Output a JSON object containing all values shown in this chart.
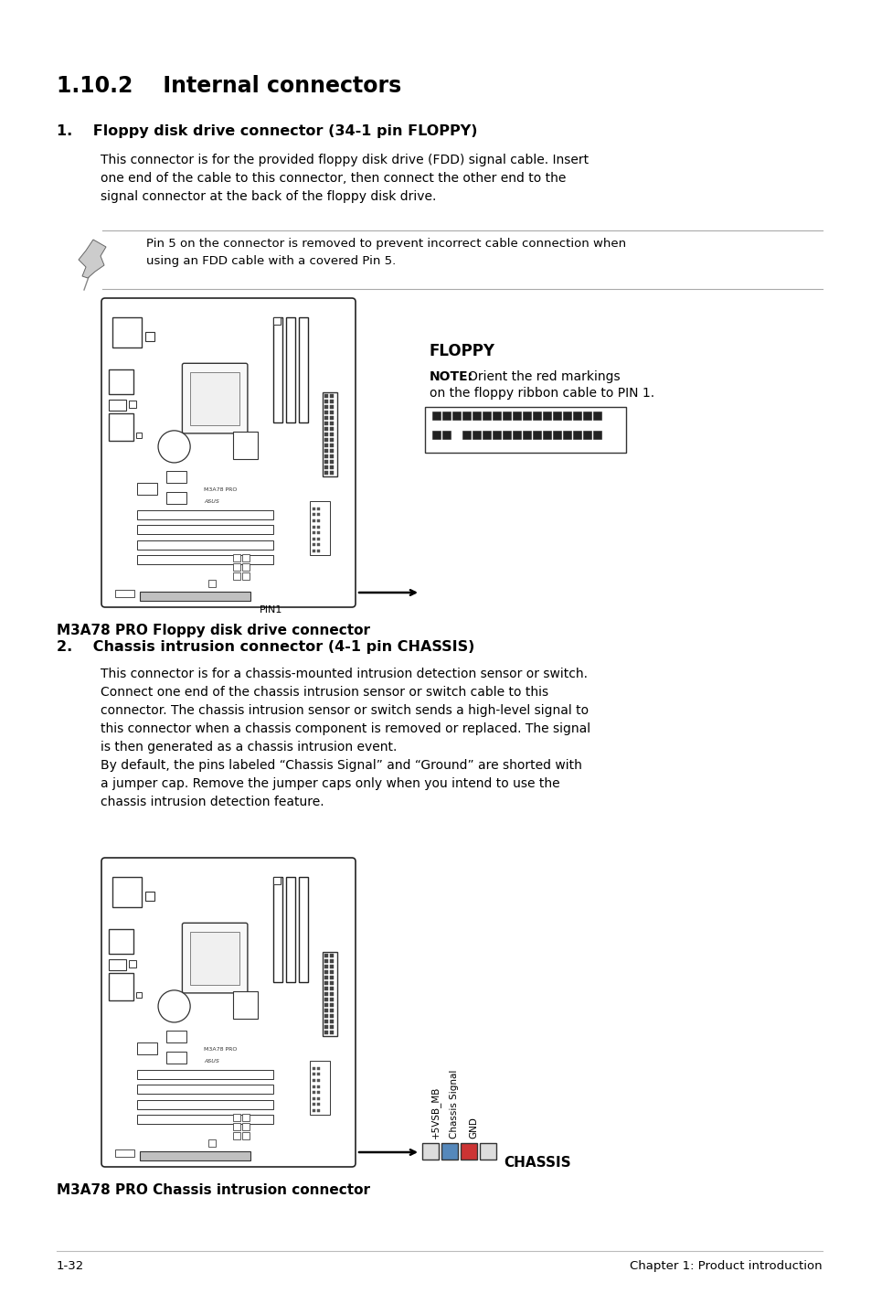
{
  "title": "1.10.2    Internal connectors",
  "section1_heading": "1.    Floppy disk drive connector (34-1 pin FLOPPY)",
  "section1_body": "This connector is for the provided floppy disk drive (FDD) signal cable. Insert\none end of the cable to this connector, then connect the other end to the\nsignal connector at the back of the floppy disk drive.",
  "note1_text": "Pin 5 on the connector is removed to prevent incorrect cable connection when\nusing an FDD cable with a covered Pin 5.",
  "floppy_label": "FLOPPY",
  "floppy_note_bold": "NOTE:",
  "floppy_note_rest1": "Orient the red markings",
  "floppy_note_rest2": "on the floppy ribbon cable to PIN 1.",
  "floppy_caption": "M3A78 PRO Floppy disk drive connector",
  "floppy_pin1": "PIN1",
  "section2_heading": "2.    Chassis intrusion connector (4-1 pin CHASSIS)",
  "section2_body1": "This connector is for a chassis-mounted intrusion detection sensor or switch.\nConnect one end of the chassis intrusion sensor or switch cable to this\nconnector. The chassis intrusion sensor or switch sends a high-level signal to\nthis connector when a chassis component is removed or replaced. The signal\nis then generated as a chassis intrusion event.",
  "section2_body2": "By default, the pins labeled “Chassis Signal” and “Ground” are shorted with\na jumper cap. Remove the jumper caps only when you intend to use the\nchassis intrusion detection feature.",
  "chassis_label": "CHASSIS",
  "chassis_pins": [
    "+5VSB_MB",
    "Chassis Signal",
    "GND"
  ],
  "chassis_caption": "M3A78 PRO Chassis intrusion connector",
  "footer_left": "1-32",
  "footer_right": "Chapter 1: Product introduction",
  "bg_color": "#ffffff",
  "text_color": "#000000"
}
